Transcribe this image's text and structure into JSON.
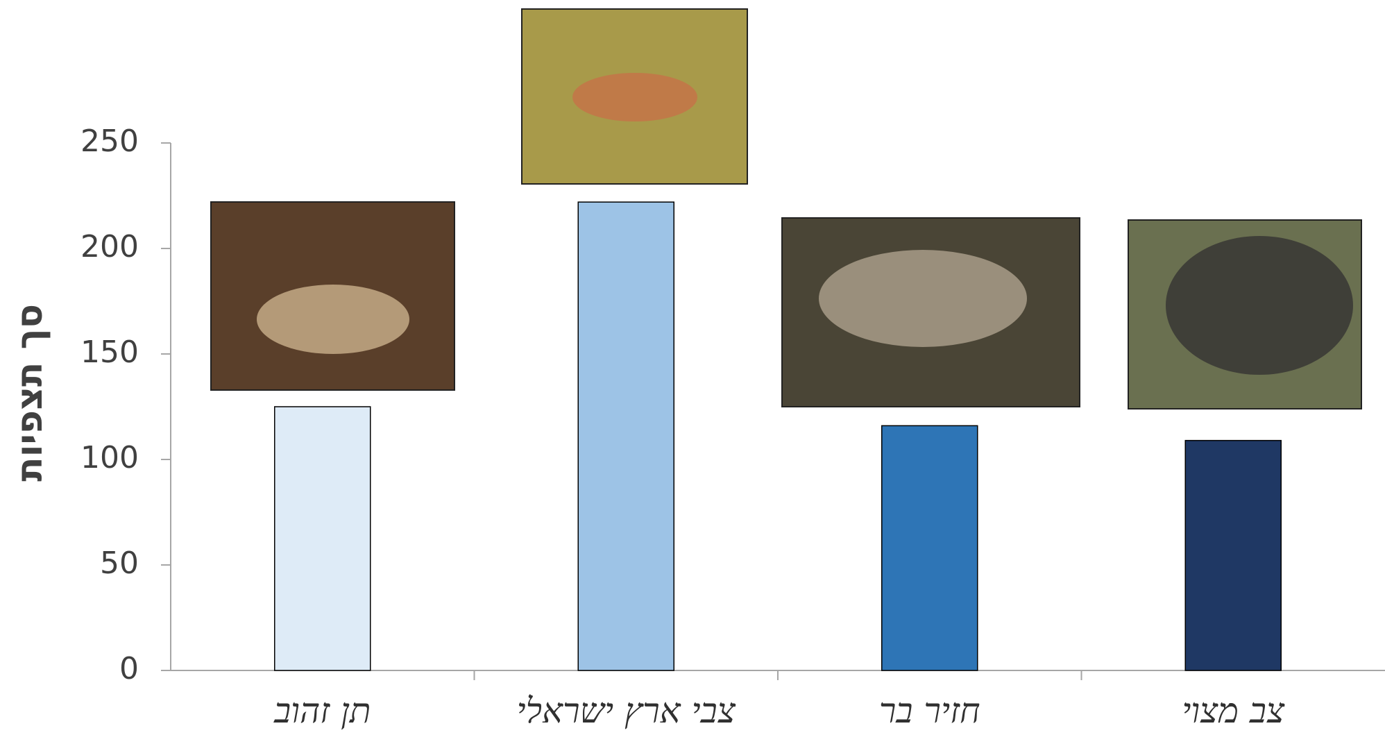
{
  "chart_data": {
    "type": "bar",
    "y_label": "סך תצפיות",
    "categories": [
      "תן זהוב",
      "צבי ארץ ישראלי",
      "חזיר בר",
      "צב מצוי"
    ],
    "values": [
      125,
      222,
      116,
      109
    ],
    "colors": [
      "#deebf7",
      "#9dc3e6",
      "#2e75b6",
      "#1f3864"
    ],
    "ylim": [
      0,
      250
    ],
    "yticks": [
      0,
      50,
      100,
      150,
      200,
      250
    ],
    "grid": false
  }
}
